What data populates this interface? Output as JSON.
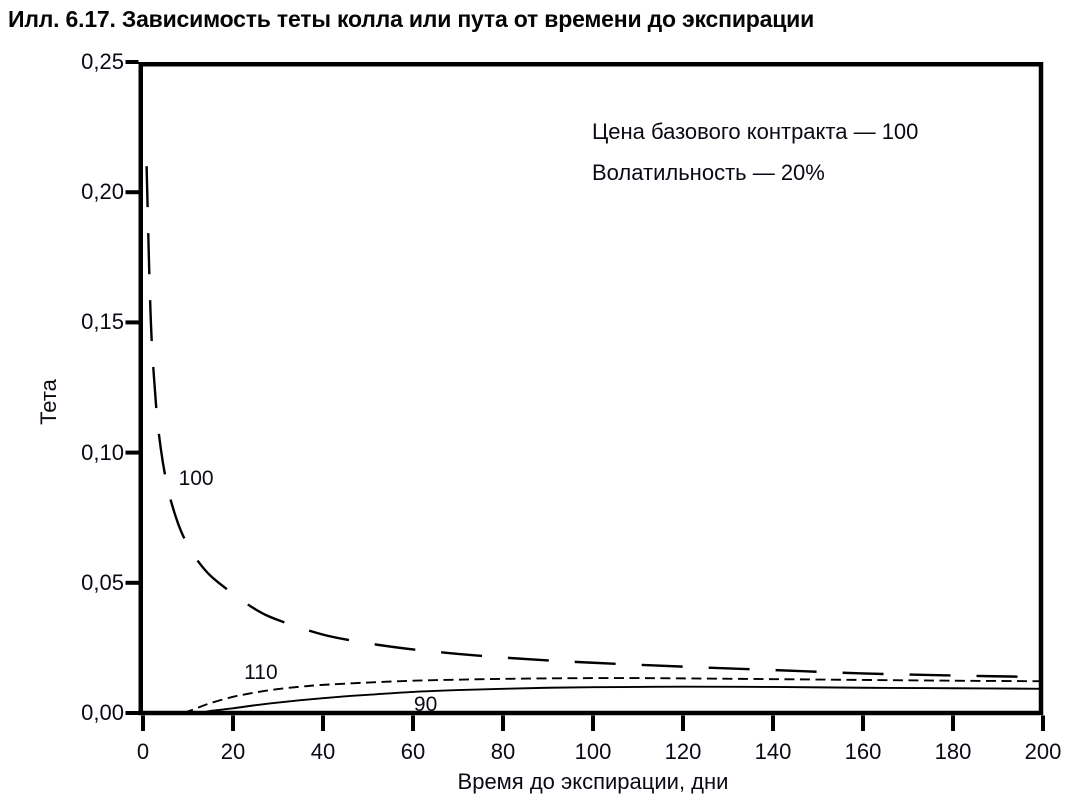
{
  "colors": {
    "ink": "#000000",
    "text": "#0a0a14"
  },
  "chart_data": {
    "type": "line",
    "title": "Илл. 6.17. Зависимость теты колла или пута от времени до экспирации",
    "xlabel": "Время до экспирации, дни",
    "ylabel": "Тета",
    "xlim": [
      0,
      200
    ],
    "ylim": [
      0,
      0.25
    ],
    "xticks": [
      0,
      20,
      40,
      60,
      80,
      100,
      120,
      140,
      160,
      180,
      200
    ],
    "yticks": [
      0,
      0.05,
      0.1,
      0.15,
      0.2,
      0.25
    ],
    "ytick_labels": [
      "0,00",
      "0,05",
      "0,10",
      "0,15",
      "0,20",
      "0,25"
    ],
    "grid": false,
    "legend_position": "inline-curve-labels",
    "annotations": [
      "Цена базового контракта — 100",
      "Волатильность — 20%"
    ],
    "series": [
      {
        "name": "strike-100",
        "label": "100",
        "line": "long-dash",
        "label_at": [
          11.8,
          0.0904
        ],
        "points": [
          [
            0.8,
            0.21
          ],
          [
            1,
            0.196
          ],
          [
            1.5,
            0.163
          ],
          [
            2,
            0.141
          ],
          [
            3,
            0.116
          ],
          [
            4,
            0.101
          ],
          [
            5,
            0.0905
          ],
          [
            6,
            0.0827
          ],
          [
            8,
            0.0718
          ],
          [
            10,
            0.0643
          ],
          [
            12,
            0.0588
          ],
          [
            15,
            0.0527
          ],
          [
            20,
            0.0458
          ],
          [
            25,
            0.0398
          ],
          [
            30,
            0.0357
          ],
          [
            40,
            0.0301
          ],
          [
            50,
            0.0268
          ],
          [
            60,
            0.0244
          ],
          [
            70,
            0.0227
          ],
          [
            80,
            0.0213
          ],
          [
            90,
            0.0202
          ],
          [
            100,
            0.0193
          ],
          [
            120,
            0.0178
          ],
          [
            140,
            0.0165
          ],
          [
            160,
            0.0152
          ],
          [
            180,
            0.0144
          ],
          [
            200,
            0.0138
          ]
        ]
      },
      {
        "name": "strike-110",
        "label": "110",
        "line": "short-dash",
        "label_at": [
          26.2,
          0.0159
        ],
        "points": [
          [
            9,
            0.0001
          ],
          [
            10,
            0.0006
          ],
          [
            12,
            0.0019
          ],
          [
            15,
            0.0038
          ],
          [
            20,
            0.0062
          ],
          [
            25,
            0.0079
          ],
          [
            30,
            0.0092
          ],
          [
            35,
            0.0101
          ],
          [
            40,
            0.0108
          ],
          [
            50,
            0.0117
          ],
          [
            60,
            0.0124
          ],
          [
            70,
            0.0128
          ],
          [
            80,
            0.0131
          ],
          [
            90,
            0.0133
          ],
          [
            100,
            0.0134
          ],
          [
            110,
            0.0134
          ],
          [
            120,
            0.0133
          ],
          [
            140,
            0.013
          ],
          [
            160,
            0.0127
          ],
          [
            180,
            0.0124
          ],
          [
            200,
            0.0122
          ]
        ]
      },
      {
        "name": "strike-90",
        "label": "90",
        "line": "solid",
        "label_at": [
          62.8,
          0.0033
        ],
        "points": [
          [
            13,
            0.0001
          ],
          [
            15,
            0.0008
          ],
          [
            20,
            0.0018
          ],
          [
            25,
            0.003
          ],
          [
            30,
            0.004
          ],
          [
            35,
            0.0049
          ],
          [
            40,
            0.0057
          ],
          [
            45,
            0.0064
          ],
          [
            50,
            0.007
          ],
          [
            60,
            0.0081
          ],
          [
            70,
            0.0088
          ],
          [
            80,
            0.0093
          ],
          [
            90,
            0.0097
          ],
          [
            100,
            0.0099
          ],
          [
            110,
            0.01
          ],
          [
            120,
            0.0101
          ],
          [
            140,
            0.01
          ],
          [
            160,
            0.0097
          ],
          [
            180,
            0.0095
          ],
          [
            200,
            0.0093
          ]
        ]
      }
    ]
  }
}
